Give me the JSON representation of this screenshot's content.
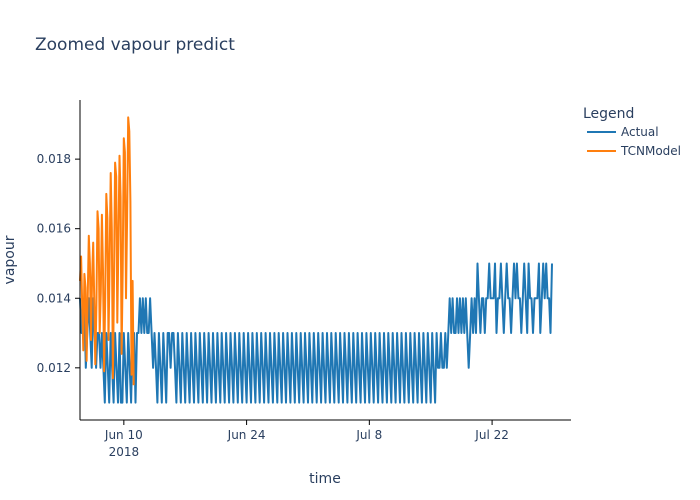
{
  "chart_data": {
    "type": "line",
    "title": "Zoomed vapour predict",
    "xlabel": "time",
    "ylabel": "vapour",
    "legend_title": "Legend",
    "legend_position": "top-right",
    "grid": false,
    "x_range": [
      "2018-06-05",
      "2018-07-31"
    ],
    "ylim": [
      0.0105,
      0.0197
    ],
    "x_ticks": [
      {
        "date": "2018-06-10",
        "label": "Jun 10",
        "sublabel": "2018"
      },
      {
        "date": "2018-06-24",
        "label": "Jun 24",
        "sublabel": ""
      },
      {
        "date": "2018-07-08",
        "label": "Jul 8",
        "sublabel": ""
      },
      {
        "date": "2018-07-22",
        "label": "Jul 22",
        "sublabel": ""
      }
    ],
    "y_ticks": [
      {
        "value": 0.012,
        "label": "0.012"
      },
      {
        "value": 0.014,
        "label": "0.014"
      },
      {
        "value": 0.016,
        "label": "0.016"
      },
      {
        "value": 0.018,
        "label": "0.018"
      }
    ],
    "series": [
      {
        "name": "Actual",
        "color": "#1f77b4",
        "sampling": "hourly",
        "x_start": "2018-06-05 00:00",
        "hours_per_point": 4,
        "y": [
          0.014,
          0.013,
          0.013,
          0.014,
          0.012,
          0.013,
          0.014,
          0.013,
          0.012,
          0.014,
          0.013,
          0.012,
          0.013,
          0.013,
          0.012,
          0.013,
          0.012,
          0.011,
          0.013,
          0.012,
          0.011,
          0.013,
          0.012,
          0.011,
          0.013,
          0.012,
          0.011,
          0.013,
          0.011,
          0.011,
          0.013,
          0.012,
          0.011,
          0.013,
          0.012,
          0.011,
          0.013,
          0.013,
          0.011,
          0.013,
          0.013,
          0.014,
          0.013,
          0.014,
          0.013,
          0.014,
          0.013,
          0.013,
          0.014,
          0.013,
          0.012,
          0.013,
          0.012,
          0.011,
          0.013,
          0.012,
          0.011,
          0.013,
          0.012,
          0.011,
          0.013,
          0.013,
          0.012,
          0.013,
          0.013,
          0.012,
          0.011,
          0.013,
          0.012,
          0.011,
          0.013,
          0.012,
          0.011,
          0.013,
          0.012,
          0.011,
          0.013,
          0.012,
          0.011,
          0.013,
          0.012,
          0.011,
          0.013,
          0.012,
          0.011,
          0.013,
          0.012,
          0.011,
          0.013,
          0.012,
          0.011,
          0.013,
          0.012,
          0.011,
          0.013,
          0.012,
          0.011,
          0.013,
          0.012,
          0.011,
          0.013,
          0.012,
          0.011,
          0.013,
          0.012,
          0.011,
          0.013,
          0.012,
          0.011,
          0.013,
          0.012,
          0.011,
          0.013,
          0.012,
          0.011,
          0.013,
          0.012,
          0.011,
          0.013,
          0.012,
          0.011,
          0.013,
          0.012,
          0.011,
          0.013,
          0.012,
          0.011,
          0.013,
          0.012,
          0.011,
          0.013,
          0.012,
          0.011,
          0.013,
          0.012,
          0.011,
          0.013,
          0.012,
          0.011,
          0.013,
          0.012,
          0.011,
          0.013,
          0.012,
          0.011,
          0.013,
          0.012,
          0.011,
          0.013,
          0.012,
          0.011,
          0.013,
          0.012,
          0.011,
          0.013,
          0.012,
          0.011,
          0.013,
          0.012,
          0.011,
          0.013,
          0.012,
          0.011,
          0.013,
          0.012,
          0.011,
          0.013,
          0.012,
          0.011,
          0.013,
          0.012,
          0.011,
          0.013,
          0.012,
          0.011,
          0.013,
          0.012,
          0.011,
          0.013,
          0.012,
          0.011,
          0.013,
          0.012,
          0.011,
          0.013,
          0.012,
          0.011,
          0.013,
          0.012,
          0.011,
          0.013,
          0.012,
          0.011,
          0.013,
          0.012,
          0.011,
          0.013,
          0.012,
          0.011,
          0.013,
          0.012,
          0.011,
          0.013,
          0.012,
          0.011,
          0.013,
          0.012,
          0.011,
          0.013,
          0.012,
          0.011,
          0.013,
          0.012,
          0.011,
          0.013,
          0.012,
          0.011,
          0.013,
          0.012,
          0.011,
          0.013,
          0.012,
          0.011,
          0.013,
          0.012,
          0.011,
          0.013,
          0.012,
          0.011,
          0.013,
          0.012,
          0.011,
          0.013,
          0.012,
          0.011,
          0.013,
          0.012,
          0.011,
          0.013,
          0.012,
          0.011,
          0.013,
          0.012,
          0.011,
          0.013,
          0.012,
          0.012,
          0.013,
          0.012,
          0.012,
          0.013,
          0.012,
          0.013,
          0.014,
          0.013,
          0.014,
          0.013,
          0.013,
          0.014,
          0.013,
          0.014,
          0.013,
          0.014,
          0.013,
          0.014,
          0.013,
          0.012,
          0.013,
          0.014,
          0.013,
          0.014,
          0.013,
          0.015,
          0.014,
          0.013,
          0.014,
          0.014,
          0.013,
          0.014,
          0.014,
          0.015,
          0.014,
          0.014,
          0.014,
          0.015,
          0.013,
          0.014,
          0.014,
          0.015,
          0.014,
          0.013,
          0.014,
          0.015,
          0.014,
          0.014,
          0.013,
          0.014,
          0.015,
          0.014,
          0.015,
          0.014,
          0.014,
          0.013,
          0.014,
          0.015,
          0.014,
          0.013,
          0.015,
          0.014,
          0.014,
          0.013,
          0.014,
          0.014,
          0.014,
          0.015,
          0.013,
          0.014,
          0.015,
          0.014,
          0.015,
          0.014,
          0.014,
          0.013,
          0.015
        ]
      },
      {
        "name": "TCNModel",
        "color": "#ff7f0e",
        "sampling": "hourly",
        "x_start": "2018-06-05 00:00",
        "hours_per_point": 3,
        "y": [
          0.0145,
          0.0152,
          0.0138,
          0.0125,
          0.0147,
          0.0143,
          0.0122,
          0.014,
          0.0158,
          0.015,
          0.0128,
          0.0146,
          0.0156,
          0.014,
          0.0121,
          0.0138,
          0.0165,
          0.016,
          0.013,
          0.0142,
          0.0164,
          0.0148,
          0.0119,
          0.014,
          0.017,
          0.0163,
          0.0128,
          0.015,
          0.0176,
          0.016,
          0.0117,
          0.0145,
          0.0179,
          0.0175,
          0.0133,
          0.0156,
          0.0181,
          0.0169,
          0.0124,
          0.0148,
          0.0186,
          0.0182,
          0.014,
          0.0163,
          0.0192,
          0.0188,
          0.0168,
          0.0118,
          0.0145,
          0.0115
        ]
      }
    ]
  }
}
